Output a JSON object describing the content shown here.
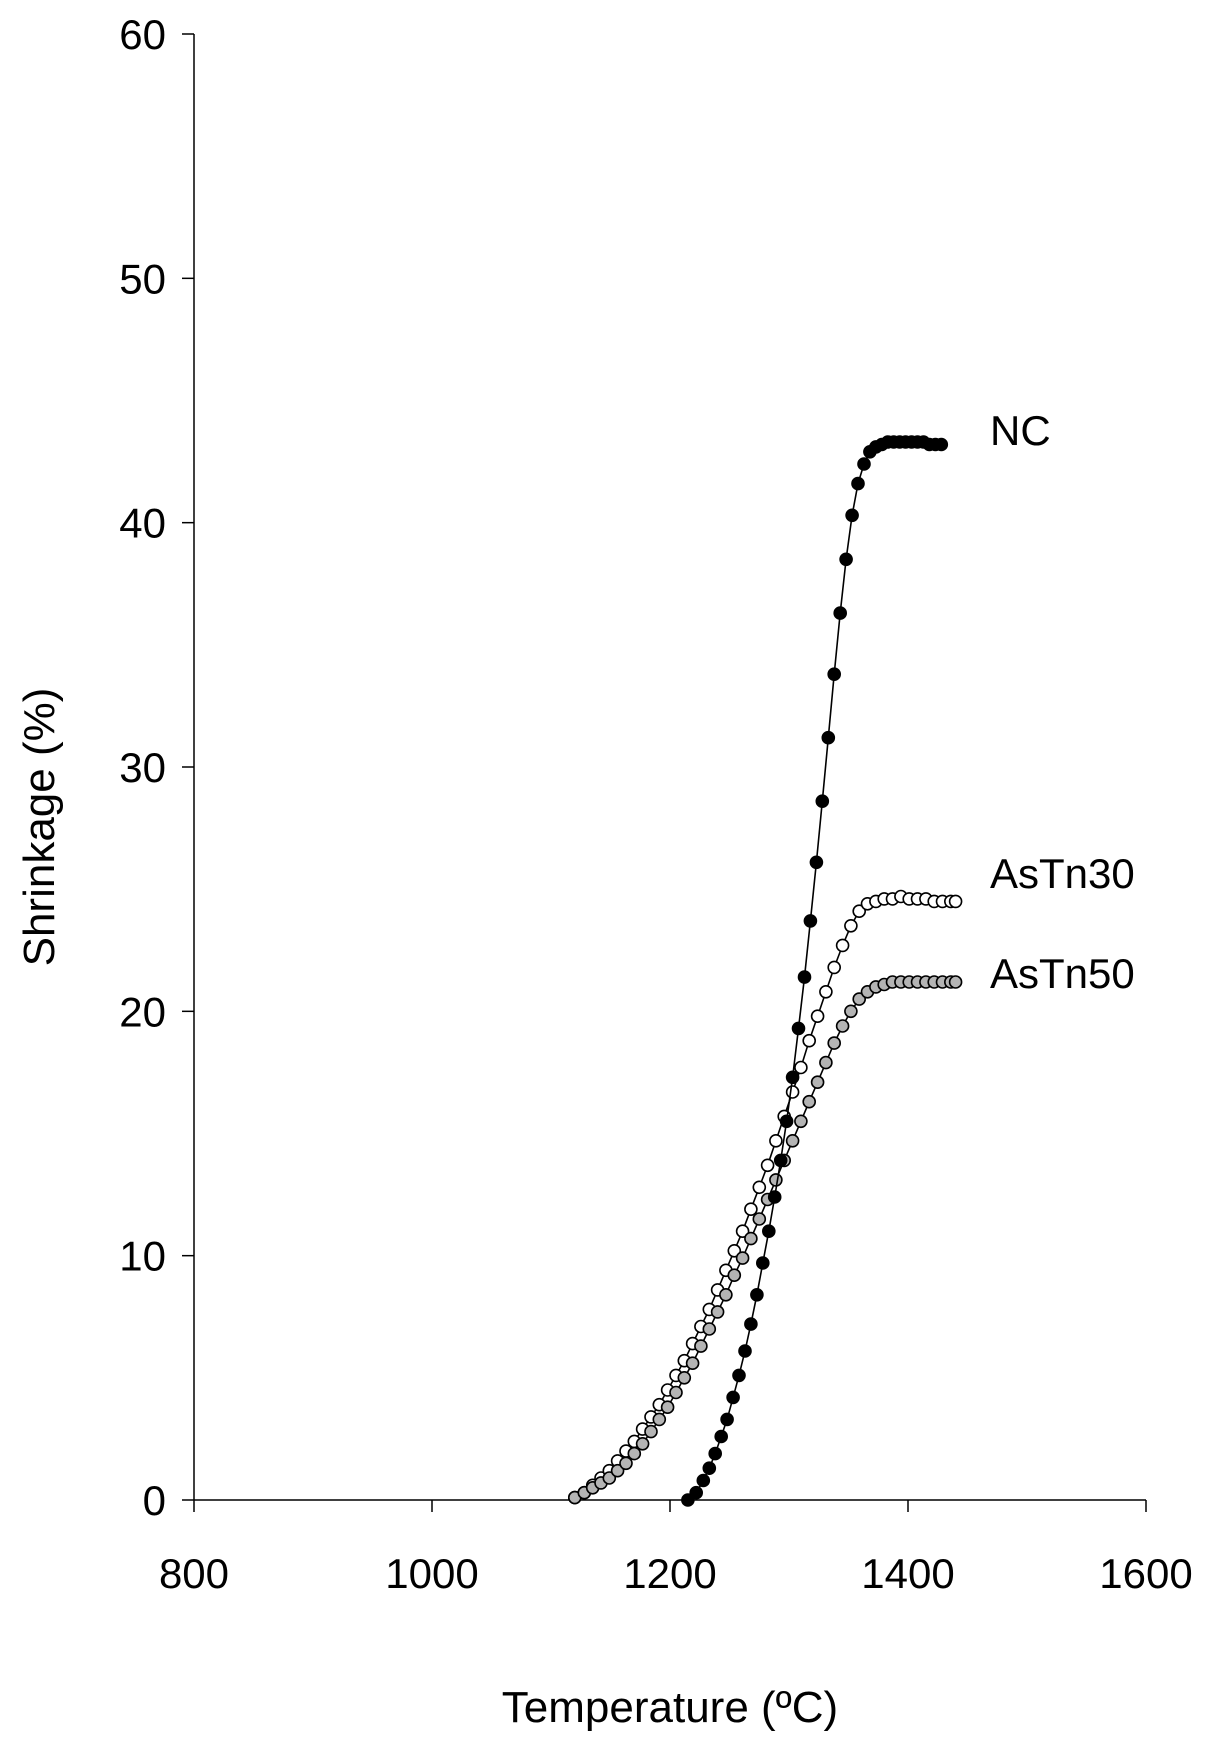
{
  "chart_data": {
    "type": "scatter",
    "title": "",
    "xlabel": "Temperature (ºC)",
    "ylabel": "Shrinkage (%)",
    "xlim": [
      800,
      1600
    ],
    "ylim": [
      0,
      60
    ],
    "x_ticks": [
      800,
      1000,
      1200,
      1400,
      1600
    ],
    "y_ticks": [
      0,
      10,
      20,
      30,
      40,
      50,
      60
    ],
    "grid": false,
    "legend": "none (series labelled at line ends)",
    "series": [
      {
        "name": "NC",
        "marker": "filled-circle",
        "color": "#000000",
        "points": [
          [
            1215,
            0.0
          ],
          [
            1222,
            0.3
          ],
          [
            1228,
            0.8
          ],
          [
            1233,
            1.3
          ],
          [
            1238,
            1.9
          ],
          [
            1243,
            2.6
          ],
          [
            1248,
            3.3
          ],
          [
            1253,
            4.2
          ],
          [
            1258,
            5.1
          ],
          [
            1263,
            6.1
          ],
          [
            1268,
            7.2
          ],
          [
            1273,
            8.4
          ],
          [
            1278,
            9.7
          ],
          [
            1283,
            11.0
          ],
          [
            1288,
            12.4
          ],
          [
            1293,
            13.9
          ],
          [
            1298,
            15.5
          ],
          [
            1303,
            17.3
          ],
          [
            1308,
            19.3
          ],
          [
            1313,
            21.4
          ],
          [
            1318,
            23.7
          ],
          [
            1323,
            26.1
          ],
          [
            1328,
            28.6
          ],
          [
            1333,
            31.2
          ],
          [
            1338,
            33.8
          ],
          [
            1343,
            36.3
          ],
          [
            1348,
            38.5
          ],
          [
            1353,
            40.3
          ],
          [
            1358,
            41.6
          ],
          [
            1363,
            42.4
          ],
          [
            1368,
            42.9
          ],
          [
            1373,
            43.1
          ],
          [
            1378,
            43.2
          ],
          [
            1383,
            43.3
          ],
          [
            1388,
            43.3
          ],
          [
            1393,
            43.3
          ],
          [
            1398,
            43.3
          ],
          [
            1403,
            43.3
          ],
          [
            1408,
            43.3
          ],
          [
            1413,
            43.3
          ],
          [
            1418,
            43.2
          ],
          [
            1423,
            43.2
          ],
          [
            1428,
            43.2
          ]
        ]
      },
      {
        "name": "AsTn30",
        "marker": "open-circle",
        "color": "#000000",
        "points": [
          [
            1120,
            0.1
          ],
          [
            1128,
            0.3
          ],
          [
            1135,
            0.6
          ],
          [
            1142,
            0.9
          ],
          [
            1149,
            1.2
          ],
          [
            1156,
            1.6
          ],
          [
            1163,
            2.0
          ],
          [
            1170,
            2.4
          ],
          [
            1177,
            2.9
          ],
          [
            1184,
            3.4
          ],
          [
            1191,
            3.9
          ],
          [
            1198,
            4.5
          ],
          [
            1205,
            5.1
          ],
          [
            1212,
            5.7
          ],
          [
            1219,
            6.4
          ],
          [
            1226,
            7.1
          ],
          [
            1233,
            7.8
          ],
          [
            1240,
            8.6
          ],
          [
            1247,
            9.4
          ],
          [
            1254,
            10.2
          ],
          [
            1261,
            11.0
          ],
          [
            1268,
            11.9
          ],
          [
            1275,
            12.8
          ],
          [
            1282,
            13.7
          ],
          [
            1289,
            14.7
          ],
          [
            1296,
            15.7
          ],
          [
            1303,
            16.7
          ],
          [
            1310,
            17.7
          ],
          [
            1317,
            18.8
          ],
          [
            1324,
            19.8
          ],
          [
            1331,
            20.8
          ],
          [
            1338,
            21.8
          ],
          [
            1345,
            22.7
          ],
          [
            1352,
            23.5
          ],
          [
            1359,
            24.1
          ],
          [
            1366,
            24.4
          ],
          [
            1373,
            24.5
          ],
          [
            1380,
            24.6
          ],
          [
            1387,
            24.6
          ],
          [
            1394,
            24.7
          ],
          [
            1401,
            24.6
          ],
          [
            1408,
            24.6
          ],
          [
            1415,
            24.6
          ],
          [
            1422,
            24.5
          ],
          [
            1429,
            24.5
          ],
          [
            1436,
            24.5
          ],
          [
            1440,
            24.5
          ]
        ]
      },
      {
        "name": "AsTn50",
        "marker": "grey-circle",
        "color": "#b4b4b4",
        "points": [
          [
            1120,
            0.1
          ],
          [
            1128,
            0.3
          ],
          [
            1135,
            0.5
          ],
          [
            1142,
            0.7
          ],
          [
            1149,
            0.9
          ],
          [
            1156,
            1.2
          ],
          [
            1163,
            1.5
          ],
          [
            1170,
            1.9
          ],
          [
            1177,
            2.3
          ],
          [
            1184,
            2.8
          ],
          [
            1191,
            3.3
          ],
          [
            1198,
            3.8
          ],
          [
            1205,
            4.4
          ],
          [
            1212,
            5.0
          ],
          [
            1219,
            5.6
          ],
          [
            1226,
            6.3
          ],
          [
            1233,
            7.0
          ],
          [
            1240,
            7.7
          ],
          [
            1247,
            8.4
          ],
          [
            1254,
            9.2
          ],
          [
            1261,
            9.9
          ],
          [
            1268,
            10.7
          ],
          [
            1275,
            11.5
          ],
          [
            1282,
            12.3
          ],
          [
            1289,
            13.1
          ],
          [
            1296,
            13.9
          ],
          [
            1303,
            14.7
          ],
          [
            1310,
            15.5
          ],
          [
            1317,
            16.3
          ],
          [
            1324,
            17.1
          ],
          [
            1331,
            17.9
          ],
          [
            1338,
            18.7
          ],
          [
            1345,
            19.4
          ],
          [
            1352,
            20.0
          ],
          [
            1359,
            20.5
          ],
          [
            1366,
            20.8
          ],
          [
            1373,
            21.0
          ],
          [
            1380,
            21.1
          ],
          [
            1387,
            21.2
          ],
          [
            1394,
            21.2
          ],
          [
            1401,
            21.2
          ],
          [
            1408,
            21.2
          ],
          [
            1415,
            21.2
          ],
          [
            1422,
            21.2
          ],
          [
            1429,
            21.2
          ],
          [
            1436,
            21.2
          ],
          [
            1440,
            21.2
          ]
        ]
      }
    ]
  }
}
